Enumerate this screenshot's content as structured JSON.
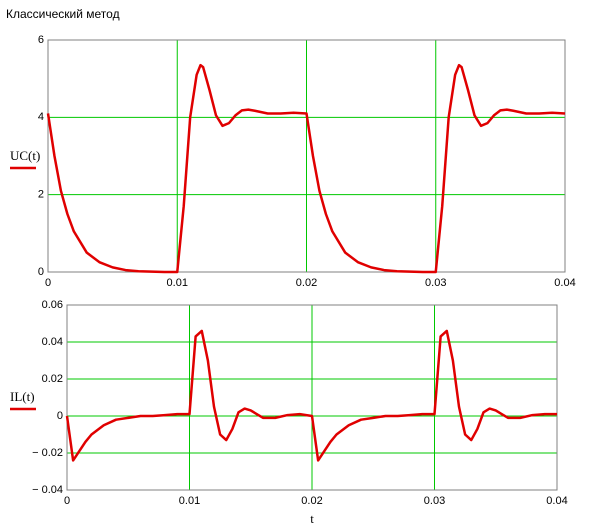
{
  "title": "Классический метод",
  "chart_data": [
    {
      "type": "line",
      "y_label": "UC(t)",
      "x": [
        0,
        0.0005,
        0.001,
        0.0015,
        0.002,
        0.003,
        0.004,
        0.005,
        0.006,
        0.007,
        0.008,
        0.009,
        0.01,
        0.0105,
        0.011,
        0.0115,
        0.0118,
        0.012,
        0.0125,
        0.013,
        0.0135,
        0.014,
        0.0145,
        0.015,
        0.0155,
        0.016,
        0.017,
        0.018,
        0.019,
        0.02,
        0.0205,
        0.021,
        0.0215,
        0.022,
        0.023,
        0.024,
        0.025,
        0.026,
        0.027,
        0.028,
        0.029,
        0.03,
        0.0305,
        0.031,
        0.0315,
        0.0318,
        0.032,
        0.0325,
        0.033,
        0.0335,
        0.034,
        0.0345,
        0.035,
        0.0355,
        0.036,
        0.037,
        0.038,
        0.039,
        0.04
      ],
      "series": [
        {
          "name": "UC(t)",
          "color": "#e00000",
          "values": [
            4.1,
            3.0,
            2.1,
            1.5,
            1.05,
            0.5,
            0.25,
            0.12,
            0.05,
            0.02,
            0.01,
            0,
            0,
            1.7,
            4.0,
            5.1,
            5.35,
            5.3,
            4.7,
            4.05,
            3.78,
            3.85,
            4.05,
            4.18,
            4.2,
            4.17,
            4.1,
            4.1,
            4.12,
            4.1,
            3.0,
            2.1,
            1.5,
            1.05,
            0.5,
            0.25,
            0.12,
            0.05,
            0.02,
            0.01,
            0,
            0,
            1.7,
            4.0,
            5.1,
            5.35,
            5.3,
            4.7,
            4.05,
            3.78,
            3.85,
            4.05,
            4.18,
            4.2,
            4.17,
            4.1,
            4.1,
            4.12,
            4.1
          ]
        }
      ],
      "xlim": [
        0,
        0.04
      ],
      "xticks": [
        0,
        0.01,
        0.02,
        0.03,
        0.04
      ],
      "ylim": [
        0,
        6
      ],
      "yticks": [
        0,
        2,
        4,
        6
      ],
      "grid": true,
      "grid_color": "#00c800"
    },
    {
      "type": "line",
      "y_label": "IL(t)",
      "x_label": "t",
      "x": [
        0,
        0.0005,
        0.001,
        0.0015,
        0.002,
        0.003,
        0.004,
        0.005,
        0.006,
        0.007,
        0.008,
        0.009,
        0.01,
        0.0105,
        0.011,
        0.0115,
        0.0118,
        0.012,
        0.0125,
        0.013,
        0.0135,
        0.014,
        0.0145,
        0.015,
        0.0155,
        0.016,
        0.017,
        0.018,
        0.019,
        0.02,
        0.0205,
        0.021,
        0.0215,
        0.022,
        0.023,
        0.024,
        0.025,
        0.026,
        0.027,
        0.028,
        0.029,
        0.03,
        0.0305,
        0.031,
        0.0315,
        0.0318,
        0.032,
        0.0325,
        0.033,
        0.0335,
        0.034,
        0.0345,
        0.035,
        0.0355,
        0.036,
        0.037,
        0.038,
        0.039,
        0.04
      ],
      "series": [
        {
          "name": "IL(t)",
          "color": "#e00000",
          "values": [
            0,
            -0.024,
            -0.019,
            -0.014,
            -0.01,
            -0.005,
            -0.002,
            -0.001,
            0,
            0,
            0.0005,
            0.001,
            0.001,
            0.043,
            0.046,
            0.03,
            0.015,
            0.005,
            -0.01,
            -0.013,
            -0.007,
            0.002,
            0.004,
            0.003,
            0.001,
            -0.001,
            -0.001,
            0.0005,
            0.001,
            0,
            -0.024,
            -0.019,
            -0.014,
            -0.01,
            -0.005,
            -0.002,
            -0.001,
            0,
            0,
            0.0005,
            0.001,
            0.001,
            0.043,
            0.046,
            0.03,
            0.015,
            0.005,
            -0.01,
            -0.013,
            -0.007,
            0.002,
            0.004,
            0.003,
            0.001,
            -0.001,
            -0.001,
            0.0005,
            0.001,
            0.001
          ]
        }
      ],
      "xlim": [
        0,
        0.04
      ],
      "xticks": [
        0,
        0.01,
        0.02,
        0.03,
        0.04
      ],
      "ylim": [
        -0.04,
        0.06
      ],
      "yticks": [
        {
          "value": -0.04,
          "label": "− 0.04"
        },
        {
          "value": -0.02,
          "label": "− 0.02"
        },
        0,
        0.02,
        0.04,
        0.06
      ],
      "grid": true,
      "grid_color": "#00c800"
    }
  ]
}
